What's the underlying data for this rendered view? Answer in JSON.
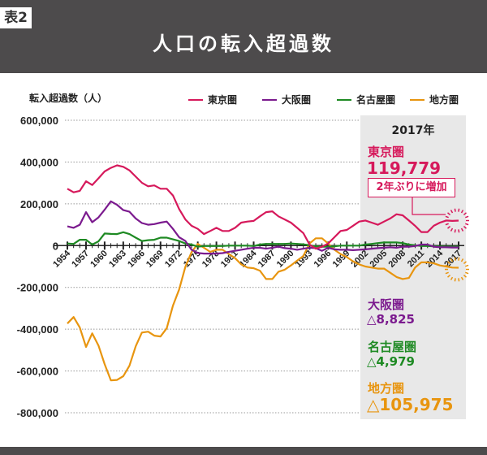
{
  "header": {
    "tag": "表2",
    "title": "人口の転入超過数"
  },
  "chart_data": {
    "type": "line",
    "title": "人口の転入超過数",
    "ylabel": "転入超過数（人）",
    "xlabel": "",
    "ylim": [
      -800000,
      600000
    ],
    "yticks": [
      600000,
      400000,
      200000,
      0,
      -200000,
      -400000,
      -600000,
      -800000
    ],
    "ytick_labels": [
      "600,000",
      "400,000",
      "200,000",
      "0",
      "-200,000",
      "-400,000",
      "-600,000",
      "-800,000"
    ],
    "xlim": [
      1954,
      2017
    ],
    "xtick_labels": [
      "1954",
      "1957",
      "1960",
      "1963",
      "1966",
      "1969",
      "1972",
      "1975",
      "1978",
      "1981",
      "1984",
      "1987",
      "1990",
      "1993",
      "1996",
      "1999",
      "2002",
      "2005",
      "2008",
      "2011",
      "2014",
      "2017"
    ],
    "grid": "horizontal-dotted",
    "legend_position": "top",
    "x": [
      1954,
      1955,
      1956,
      1957,
      1958,
      1959,
      1960,
      1961,
      1962,
      1963,
      1964,
      1965,
      1966,
      1967,
      1968,
      1969,
      1970,
      1971,
      1972,
      1973,
      1974,
      1975,
      1976,
      1977,
      1978,
      1979,
      1980,
      1981,
      1982,
      1983,
      1984,
      1985,
      1986,
      1987,
      1988,
      1989,
      1990,
      1991,
      1992,
      1993,
      1994,
      1995,
      1996,
      1997,
      1998,
      1999,
      2000,
      2001,
      2002,
      2003,
      2004,
      2005,
      2006,
      2007,
      2008,
      2009,
      2010,
      2011,
      2012,
      2013,
      2014,
      2015,
      2016,
      2017
    ],
    "series": [
      {
        "name": "東京圏",
        "color": "#d6195b",
        "values": [
          272000,
          255000,
          262000,
          308000,
          290000,
          322000,
          355000,
          372000,
          384000,
          377000,
          360000,
          330000,
          301000,
          284000,
          288000,
          272000,
          272000,
          240000,
          175000,
          125000,
          95000,
          80000,
          55000,
          70000,
          85000,
          70000,
          70000,
          85000,
          110000,
          115000,
          118000,
          140000,
          160000,
          164000,
          140000,
          125000,
          110000,
          85000,
          60000,
          5000,
          -15000,
          -5000,
          10000,
          40000,
          70000,
          75000,
          95000,
          115000,
          120000,
          110000,
          100000,
          115000,
          130000,
          150000,
          145000,
          120000,
          95000,
          65000,
          65000,
          95000,
          110000,
          120000,
          118000,
          119779
        ]
      },
      {
        "name": "大阪圏",
        "color": "#7b1a8e",
        "values": [
          92000,
          85000,
          100000,
          160000,
          112000,
          135000,
          172000,
          212000,
          195000,
          170000,
          162000,
          130000,
          108000,
          100000,
          103000,
          110000,
          115000,
          80000,
          40000,
          22000,
          -20000,
          -35000,
          -38000,
          -38000,
          -38000,
          -36000,
          -30000,
          -25000,
          -20000,
          -15000,
          -10000,
          -10000,
          -15000,
          -10000,
          -5000,
          -12000,
          -15000,
          -20000,
          -15000,
          -10000,
          -12000,
          -25000,
          -10000,
          -18000,
          -20000,
          -20000,
          -22000,
          -20000,
          -18000,
          -15000,
          -12000,
          -10000,
          -8000,
          -10000,
          -5000,
          -5000,
          -2000,
          5000,
          5000,
          -5000,
          -8000,
          -8000,
          -9000,
          -8825
        ]
      },
      {
        "name": "名古屋圏",
        "color": "#1e8a23",
        "values": [
          10000,
          8000,
          28000,
          28000,
          5000,
          20000,
          58000,
          56000,
          55000,
          64000,
          55000,
          38000,
          22000,
          26000,
          28000,
          38000,
          38000,
          30000,
          22000,
          10000,
          5000,
          -5000,
          -2000,
          -2000,
          -2000,
          -2000,
          0,
          0,
          0,
          0,
          -2000,
          5000,
          8000,
          8000,
          8000,
          8000,
          10000,
          8000,
          6000,
          2000,
          -3000,
          -5000,
          -5000,
          -3000,
          0,
          0,
          0,
          0,
          5000,
          8000,
          12000,
          15000,
          15000,
          15000,
          12000,
          5000,
          2000,
          -2000,
          -2000,
          -3000,
          -4000,
          -5000,
          -5000,
          -4979
        ]
      },
      {
        "name": "地方圏",
        "color": "#e8950f",
        "values": [
          -373000,
          -342000,
          -392000,
          -485000,
          -420000,
          -478000,
          -567000,
          -645000,
          -643000,
          -625000,
          -575000,
          -482000,
          -416000,
          -412000,
          -431000,
          -435000,
          -396000,
          -287000,
          -210000,
          -101000,
          -31000,
          8000,
          -10000,
          -30000,
          -20000,
          -20000,
          -40000,
          -60000,
          -90000,
          -105000,
          -108000,
          -120000,
          -160000,
          -160000,
          -125000,
          -115000,
          -95000,
          -72000,
          -50000,
          10000,
          35000,
          35000,
          10000,
          -20000,
          -40000,
          -55000,
          -75000,
          -90000,
          -100000,
          -105000,
          -110000,
          -110000,
          -130000,
          -150000,
          -160000,
          -155000,
          -105000,
          -80000,
          -80000,
          -85000,
          -95000,
          -100000,
          -105000,
          -105975
        ]
      }
    ]
  },
  "legend": [
    {
      "label": "東京圏",
      "color": "#d6195b"
    },
    {
      "label": "大阪圏",
      "color": "#7b1a8e"
    },
    {
      "label": "名古屋圏",
      "color": "#1e8a23"
    },
    {
      "label": "地方圏",
      "color": "#e8950f"
    }
  ],
  "annotation": {
    "year": "2017年",
    "tokyo": {
      "name": "東京圏",
      "value": "119,779",
      "note": "2年ぶりに増加"
    },
    "osaka": {
      "name": "大阪圏",
      "value": "△8,825"
    },
    "nagoya": {
      "name": "名古屋圏",
      "value": "△4,979"
    },
    "chiho": {
      "name": "地方圏",
      "value": "△105,975"
    }
  }
}
